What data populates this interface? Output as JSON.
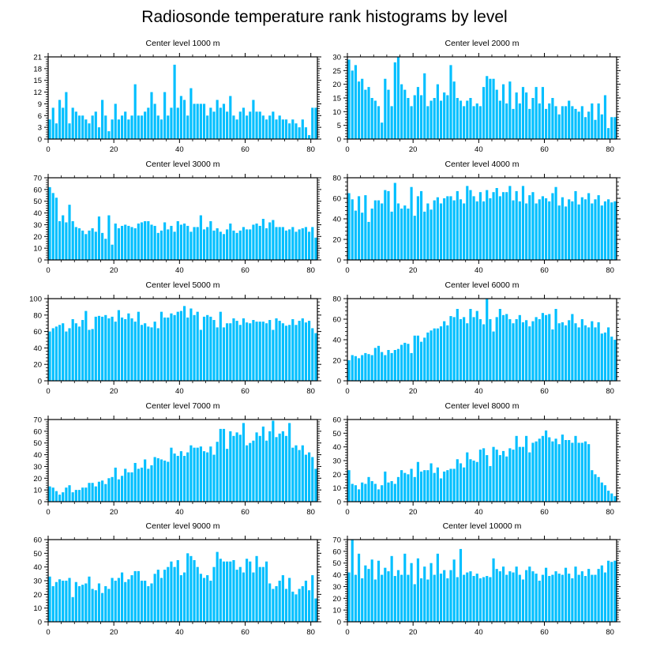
{
  "title": "Radiosonde temperature rank histograms by level",
  "colors": {
    "bar": "#00bfff",
    "axis": "#000000",
    "background": "#ffffff"
  },
  "chart_data": [
    {
      "type": "bar",
      "title": "Center level 1000 m",
      "xlim": [
        0,
        82
      ],
      "ylim": [
        0,
        21
      ],
      "xticks": [
        0,
        20,
        40,
        60,
        80
      ],
      "yticks": [
        0,
        3,
        6,
        9,
        12,
        15,
        18,
        21
      ],
      "values": [
        5,
        8,
        4,
        10,
        8,
        12,
        4,
        8,
        7,
        6,
        6,
        5,
        4,
        6,
        7,
        3,
        10,
        6,
        2,
        5,
        9,
        5,
        6,
        7,
        5,
        6,
        14,
        6,
        6,
        7,
        8,
        12,
        9,
        6,
        5,
        12,
        6,
        8,
        19,
        8,
        11,
        10,
        6,
        13,
        9,
        9,
        9,
        9,
        6,
        8,
        7,
        10,
        8,
        9,
        7,
        11,
        6,
        5,
        7,
        8,
        6,
        7,
        10,
        7,
        7,
        6,
        5,
        6,
        7,
        5,
        6,
        5,
        5,
        4,
        5,
        4,
        3,
        5,
        3,
        1,
        8,
        8
      ]
    },
    {
      "type": "bar",
      "title": "Center level 2000 m",
      "xlim": [
        0,
        82
      ],
      "ylim": [
        0,
        30
      ],
      "xticks": [
        0,
        20,
        40,
        60,
        80
      ],
      "yticks": [
        0,
        5,
        10,
        15,
        20,
        25,
        30
      ],
      "values": [
        29,
        25,
        27,
        21,
        22,
        18,
        19,
        15,
        14,
        12,
        6,
        22,
        18,
        12,
        28,
        30,
        20,
        18,
        15,
        12,
        16,
        19,
        16,
        24,
        12,
        14,
        15,
        20,
        14,
        17,
        16,
        27,
        21,
        15,
        14,
        12,
        14,
        15,
        12,
        13,
        12,
        19,
        23,
        22,
        22,
        18,
        14,
        20,
        13,
        21,
        11,
        17,
        13,
        19,
        17,
        11,
        15,
        19,
        13,
        19,
        11,
        13,
        15,
        12,
        9,
        12,
        12,
        14,
        12,
        11,
        10,
        12,
        8,
        10,
        13,
        7,
        13,
        9,
        16,
        4,
        8,
        8
      ]
    },
    {
      "type": "bar",
      "title": "Center level 3000 m",
      "xlim": [
        0,
        82
      ],
      "ylim": [
        0,
        70
      ],
      "xticks": [
        0,
        20,
        40,
        60,
        80
      ],
      "yticks": [
        0,
        10,
        20,
        30,
        40,
        50,
        60,
        70
      ],
      "values": [
        62,
        57,
        53,
        33,
        38,
        32,
        47,
        33,
        28,
        27,
        25,
        22,
        25,
        27,
        24,
        37,
        23,
        18,
        38,
        13,
        31,
        27,
        29,
        30,
        29,
        28,
        27,
        31,
        32,
        33,
        33,
        30,
        29,
        23,
        25,
        32,
        26,
        29,
        24,
        33,
        30,
        31,
        29,
        24,
        28,
        28,
        38,
        26,
        28,
        33,
        25,
        27,
        24,
        22,
        26,
        31,
        25,
        23,
        25,
        28,
        26,
        26,
        30,
        31,
        29,
        35,
        27,
        32,
        34,
        28,
        28,
        28,
        25,
        26,
        28,
        24,
        26,
        27,
        28,
        24,
        28,
        19
      ]
    },
    {
      "type": "bar",
      "title": "Center level 4000 m",
      "xlim": [
        0,
        82
      ],
      "ylim": [
        0,
        80
      ],
      "xticks": [
        0,
        20,
        40,
        60,
        80
      ],
      "yticks": [
        0,
        20,
        40,
        60,
        80
      ],
      "values": [
        65,
        59,
        48,
        62,
        46,
        63,
        37,
        50,
        58,
        58,
        55,
        68,
        67,
        47,
        75,
        55,
        50,
        53,
        50,
        71,
        43,
        62,
        67,
        47,
        55,
        49,
        58,
        61,
        55,
        60,
        62,
        62,
        58,
        67,
        59,
        55,
        72,
        68,
        62,
        57,
        66,
        57,
        68,
        60,
        66,
        70,
        62,
        66,
        66,
        72,
        58,
        67,
        57,
        72,
        55,
        63,
        66,
        55,
        59,
        62,
        60,
        57,
        65,
        71,
        53,
        61,
        52,
        59,
        57,
        67,
        54,
        61,
        59,
        65,
        55,
        59,
        63,
        53,
        57,
        59,
        56,
        57
      ]
    },
    {
      "type": "bar",
      "title": "Center level 5000 m",
      "xlim": [
        0,
        82
      ],
      "ylim": [
        0,
        100
      ],
      "xticks": [
        0,
        20,
        40,
        60,
        80
      ],
      "yticks": [
        0,
        20,
        40,
        60,
        80,
        100
      ],
      "values": [
        60,
        64,
        66,
        68,
        70,
        60,
        64,
        75,
        70,
        66,
        74,
        85,
        62,
        63,
        78,
        79,
        78,
        80,
        76,
        78,
        72,
        86,
        77,
        75,
        82,
        76,
        72,
        84,
        68,
        70,
        66,
        65,
        72,
        64,
        84,
        77,
        77,
        82,
        80,
        84,
        85,
        91,
        77,
        88,
        80,
        84,
        62,
        78,
        80,
        78,
        74,
        65,
        84,
        65,
        70,
        70,
        76,
        73,
        68,
        76,
        71,
        70,
        74,
        72,
        72,
        72,
        70,
        74,
        62,
        76,
        73,
        70,
        67,
        68,
        75,
        68,
        73,
        76,
        71,
        73,
        64,
        58
      ]
    },
    {
      "type": "bar",
      "title": "Center level 6000 m",
      "xlim": [
        0,
        82
      ],
      "ylim": [
        0,
        80
      ],
      "xticks": [
        0,
        20,
        40,
        60,
        80
      ],
      "yticks": [
        0,
        20,
        40,
        60,
        80
      ],
      "values": [
        20,
        25,
        24,
        22,
        25,
        27,
        26,
        25,
        32,
        34,
        28,
        25,
        30,
        27,
        30,
        31,
        35,
        37,
        36,
        27,
        44,
        44,
        38,
        42,
        47,
        49,
        51,
        51,
        53,
        58,
        54,
        63,
        62,
        70,
        60,
        62,
        56,
        70,
        62,
        68,
        60,
        55,
        80,
        60,
        48,
        62,
        70,
        64,
        65,
        60,
        56,
        60,
        64,
        57,
        59,
        53,
        58,
        62,
        60,
        66,
        64,
        65,
        50,
        70,
        56,
        57,
        54,
        59,
        65,
        56,
        52,
        60,
        54,
        52,
        58,
        52,
        57,
        46,
        47,
        52,
        43,
        40
      ]
    },
    {
      "type": "bar",
      "title": "Center level 7000 m",
      "xlim": [
        0,
        82
      ],
      "ylim": [
        0,
        70
      ],
      "xticks": [
        0,
        20,
        40,
        60,
        80
      ],
      "yticks": [
        0,
        10,
        20,
        30,
        40,
        50,
        60,
        70
      ],
      "values": [
        13,
        12,
        9,
        6,
        8,
        12,
        14,
        8,
        10,
        10,
        12,
        12,
        16,
        16,
        13,
        17,
        18,
        15,
        20,
        21,
        29,
        19,
        22,
        28,
        25,
        25,
        33,
        28,
        29,
        36,
        28,
        31,
        38,
        37,
        36,
        35,
        34,
        46,
        41,
        39,
        43,
        39,
        42,
        48,
        46,
        46,
        47,
        43,
        42,
        47,
        40,
        51,
        62,
        62,
        45,
        60,
        56,
        59,
        57,
        67,
        48,
        50,
        52,
        59,
        56,
        64,
        52,
        60,
        69,
        55,
        58,
        60,
        56,
        67,
        46,
        48,
        44,
        48,
        40,
        42,
        38,
        28
      ]
    },
    {
      "type": "bar",
      "title": "Center level 8000 m",
      "xlim": [
        0,
        82
      ],
      "ylim": [
        0,
        60
      ],
      "xticks": [
        0,
        20,
        40,
        60,
        80
      ],
      "yticks": [
        0,
        10,
        20,
        30,
        40,
        50,
        60
      ],
      "values": [
        23,
        13,
        12,
        9,
        14,
        13,
        18,
        15,
        13,
        9,
        12,
        22,
        14,
        15,
        13,
        18,
        23,
        21,
        20,
        24,
        18,
        29,
        22,
        23,
        23,
        28,
        21,
        25,
        17,
        22,
        23,
        24,
        24,
        31,
        28,
        25,
        36,
        31,
        30,
        29,
        38,
        39,
        34,
        26,
        40,
        38,
        34,
        37,
        33,
        39,
        38,
        48,
        40,
        40,
        48,
        36,
        43,
        44,
        46,
        48,
        52,
        47,
        44,
        46,
        42,
        49,
        45,
        45,
        43,
        48,
        43,
        43,
        44,
        42,
        23,
        20,
        18,
        14,
        12,
        8,
        6,
        4
      ]
    },
    {
      "type": "bar",
      "title": "Center level 9000 m",
      "xlim": [
        0,
        82
      ],
      "ylim": [
        0,
        60
      ],
      "xticks": [
        0,
        20,
        40,
        60,
        80
      ],
      "yticks": [
        0,
        10,
        20,
        30,
        40,
        50,
        60
      ],
      "values": [
        33,
        26,
        29,
        31,
        30,
        30,
        32,
        18,
        29,
        26,
        27,
        28,
        33,
        24,
        23,
        28,
        21,
        26,
        24,
        32,
        30,
        32,
        36,
        29,
        31,
        34,
        37,
        37,
        30,
        30,
        26,
        28,
        35,
        38,
        32,
        38,
        40,
        44,
        40,
        45,
        34,
        36,
        50,
        48,
        45,
        40,
        35,
        32,
        34,
        30,
        40,
        51,
        46,
        44,
        44,
        44,
        45,
        38,
        40,
        36,
        46,
        44,
        36,
        48,
        40,
        40,
        44,
        28,
        24,
        26,
        30,
        34,
        24,
        32,
        22,
        20,
        24,
        26,
        30,
        23,
        34,
        17
      ]
    },
    {
      "type": "bar",
      "title": "Center level 10000 m",
      "xlim": [
        0,
        82
      ],
      "ylim": [
        0,
        70
      ],
      "xticks": [
        0,
        20,
        40,
        60,
        80
      ],
      "yticks": [
        0,
        10,
        20,
        30,
        40,
        50,
        60,
        70
      ],
      "values": [
        42,
        70,
        40,
        58,
        37,
        48,
        45,
        53,
        36,
        52,
        40,
        46,
        43,
        56,
        39,
        44,
        40,
        58,
        40,
        50,
        32,
        54,
        37,
        47,
        36,
        50,
        40,
        58,
        41,
        44,
        37,
        44,
        53,
        38,
        62,
        40,
        42,
        43,
        39,
        41,
        37,
        38,
        39,
        38,
        54,
        45,
        43,
        47,
        40,
        43,
        42,
        47,
        40,
        36,
        44,
        47,
        43,
        41,
        35,
        40,
        46,
        39,
        40,
        43,
        41,
        40,
        46,
        41,
        37,
        47,
        40,
        43,
        39,
        45,
        40,
        40,
        45,
        48,
        42,
        52,
        51,
        52
      ]
    }
  ]
}
